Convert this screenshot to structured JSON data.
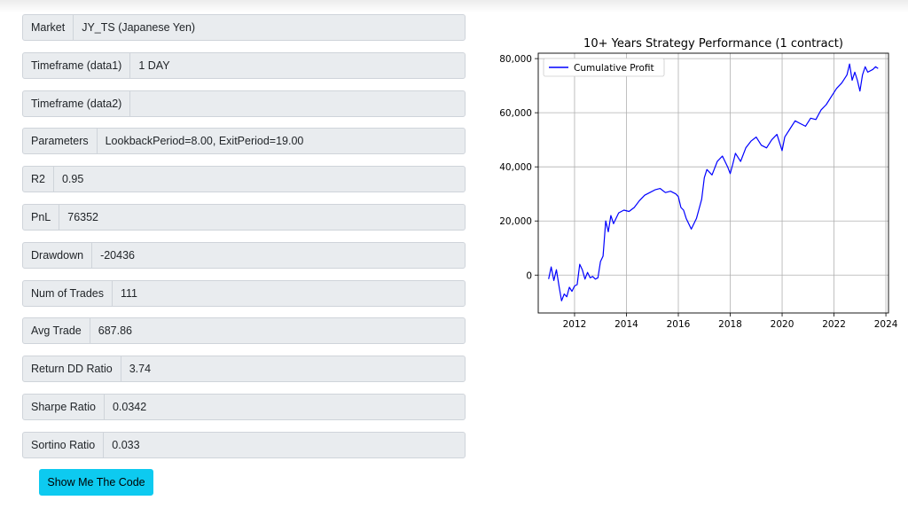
{
  "fields": [
    {
      "label": "Market",
      "value": "JY_TS (Japanese Yen)"
    },
    {
      "label": "Timeframe (data1)",
      "value": "1 DAY"
    },
    {
      "label": "Timeframe (data2)",
      "value": ""
    },
    {
      "label": "Parameters",
      "value": "LookbackPeriod=8.00, ExitPeriod=19.00"
    },
    {
      "label": "R2",
      "value": "0.95"
    },
    {
      "label": "PnL",
      "value": "76352"
    },
    {
      "label": "Drawdown",
      "value": "-20436"
    },
    {
      "label": "Num of Trades",
      "value": "111"
    },
    {
      "label": "Avg Trade",
      "value": "687.86"
    },
    {
      "label": "Return DD Ratio",
      "value": "3.74"
    },
    {
      "label": "Sharpe Ratio",
      "value": "0.0342"
    },
    {
      "label": "Sortino Ratio",
      "value": "0.033"
    }
  ],
  "button_label": "Show Me The Code",
  "colors": {
    "button": "#0dcaf0",
    "series": "#0000ff",
    "field_bg": "#e9ecef"
  },
  "chart_data": {
    "type": "line",
    "title": "10+ Years Strategy Performance (1 contract)",
    "xlabel": "",
    "ylabel": "",
    "xlim": [
      2010.6,
      2024.1
    ],
    "ylim": [
      -14000,
      82000
    ],
    "xticks": [
      2012,
      2014,
      2016,
      2018,
      2020,
      2022,
      2024
    ],
    "xtick_labels": [
      "2012",
      "2014",
      "2016",
      "2018",
      "2020",
      "2022",
      "2024"
    ],
    "yticks": [
      0,
      20000,
      40000,
      60000,
      80000
    ],
    "ytick_labels": [
      "0",
      "20,000",
      "40,000",
      "60,000",
      "80,000"
    ],
    "grid": true,
    "legend": "top-left",
    "series": [
      {
        "name": "Cumulative Profit",
        "x": [
          2011.0,
          2011.1,
          2011.2,
          2011.3,
          2011.4,
          2011.5,
          2011.6,
          2011.7,
          2011.8,
          2011.9,
          2012.0,
          2012.1,
          2012.2,
          2012.3,
          2012.4,
          2012.5,
          2012.6,
          2012.7,
          2012.8,
          2012.9,
          2013.0,
          2013.1,
          2013.2,
          2013.3,
          2013.4,
          2013.5,
          2013.7,
          2013.9,
          2014.1,
          2014.3,
          2014.5,
          2014.7,
          2014.9,
          2015.1,
          2015.3,
          2015.5,
          2015.7,
          2015.9,
          2016.0,
          2016.1,
          2016.2,
          2016.3,
          2016.5,
          2016.7,
          2016.8,
          2016.9,
          2017.0,
          2017.1,
          2017.3,
          2017.5,
          2017.7,
          2017.9,
          2018.0,
          2018.1,
          2018.2,
          2018.4,
          2018.6,
          2018.8,
          2019.0,
          2019.2,
          2019.4,
          2019.6,
          2019.8,
          2019.9,
          2020.0,
          2020.1,
          2020.3,
          2020.5,
          2020.7,
          2020.9,
          2021.1,
          2021.3,
          2021.5,
          2021.7,
          2021.9,
          2022.1,
          2022.3,
          2022.5,
          2022.6,
          2022.7,
          2022.8,
          2022.9,
          2023.0,
          2023.1,
          2023.2,
          2023.3,
          2023.5,
          2023.6,
          2023.7
        ],
        "y": [
          -1500,
          3000,
          -2000,
          2000,
          -4000,
          -9500,
          -7000,
          -8000,
          -4500,
          -6000,
          -4000,
          -3500,
          4000,
          2000,
          -1500,
          1000,
          -1000,
          -500,
          -1500,
          -1000,
          5000,
          7000,
          20000,
          16000,
          22000,
          19000,
          23000,
          24000,
          23500,
          25000,
          27500,
          29500,
          30500,
          31500,
          32000,
          30500,
          31000,
          30000,
          29000,
          25000,
          24000,
          21000,
          17000,
          21000,
          24500,
          28000,
          36000,
          39000,
          37000,
          42000,
          44000,
          40000,
          37500,
          41000,
          45000,
          42000,
          47000,
          49500,
          51000,
          48000,
          47000,
          50000,
          52000,
          49000,
          46000,
          51000,
          54000,
          57000,
          56000,
          55000,
          58000,
          57500,
          61000,
          63000,
          66000,
          69000,
          71000,
          74000,
          78000,
          72000,
          75000,
          72000,
          68000,
          74000,
          77000,
          75000,
          76000,
          77000,
          76352
        ]
      }
    ]
  }
}
